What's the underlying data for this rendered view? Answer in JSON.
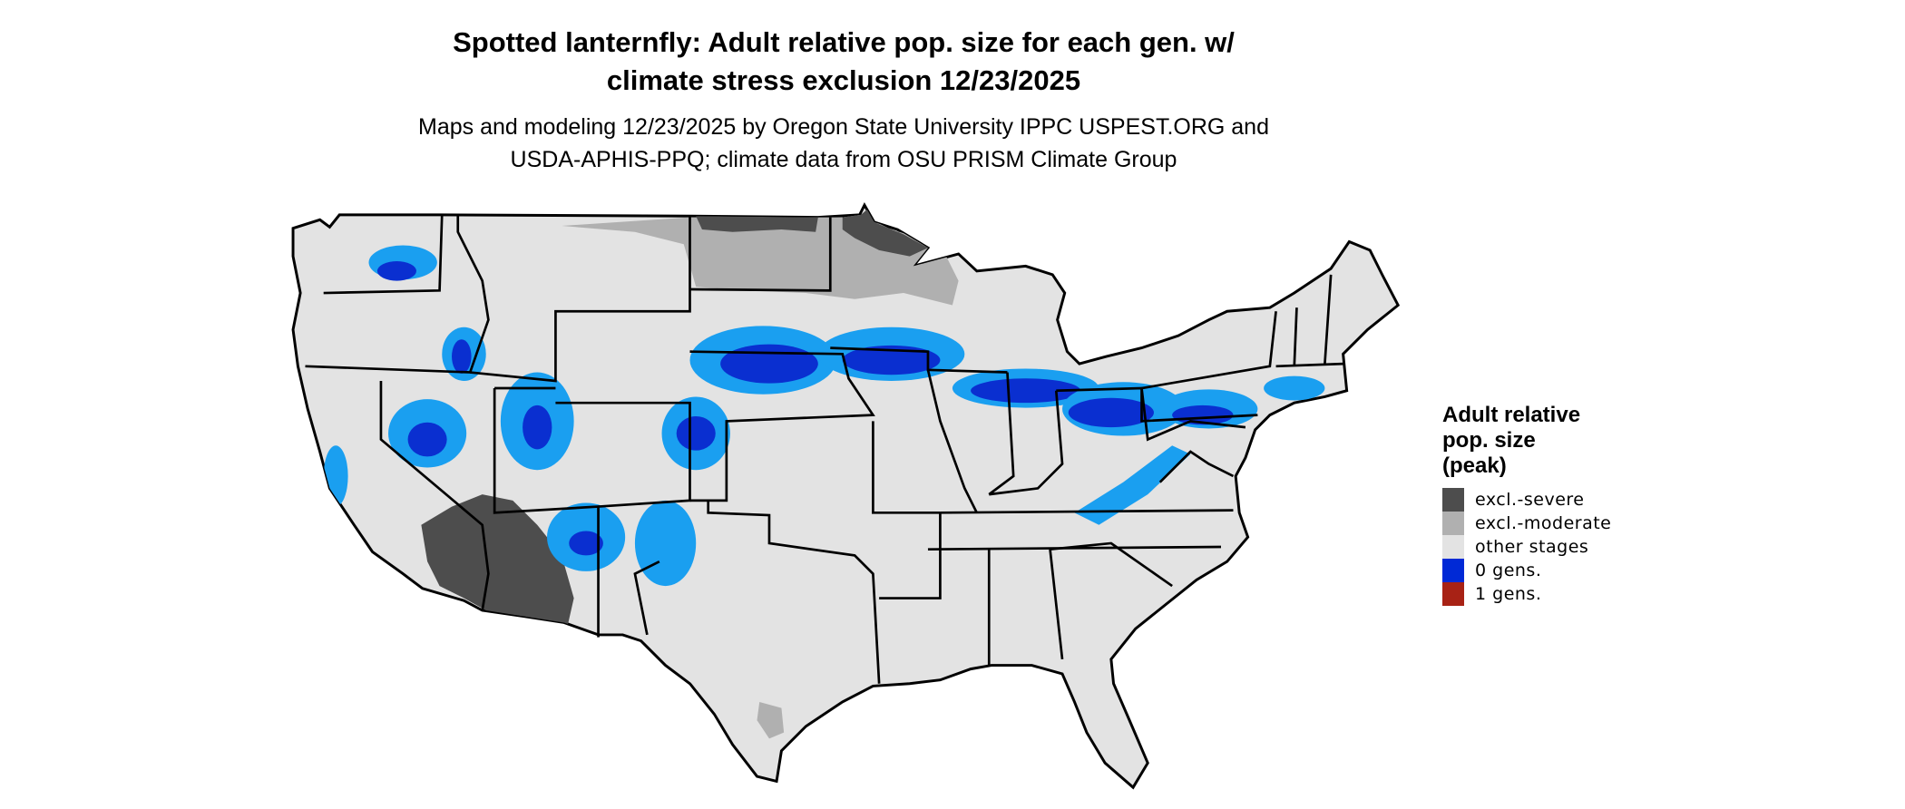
{
  "title": {
    "line1": "Spotted lanternfly: Adult relative pop. size for each gen. w/",
    "line2": "climate stress exclusion 12/23/2025"
  },
  "subtitle": {
    "line1": "Maps and modeling 12/23/2025 by Oregon State University IPPC USPEST.ORG and",
    "line2": "USDA-APHIS-PPQ; climate data from OSU PRISM Climate Group"
  },
  "map": {
    "region": "Contiguous United States",
    "colors": {
      "land": "#e3e3e3",
      "border": "#000000",
      "blue_light": "#1a9ff0",
      "blue_dark": "#0a2fd0"
    }
  },
  "legend": {
    "title_lines": [
      "Adult relative",
      "pop. size",
      "(peak)"
    ],
    "items": [
      {
        "label": "excl.-severe",
        "color": "#4d4d4d"
      },
      {
        "label": "excl.-moderate",
        "color": "#b0b0b0"
      },
      {
        "label": "other stages",
        "color": "#e3e3e3"
      },
      {
        "label": "0 gens.",
        "color": "#0029d6"
      },
      {
        "label": "1 gens.",
        "color": "#a82215"
      }
    ]
  }
}
